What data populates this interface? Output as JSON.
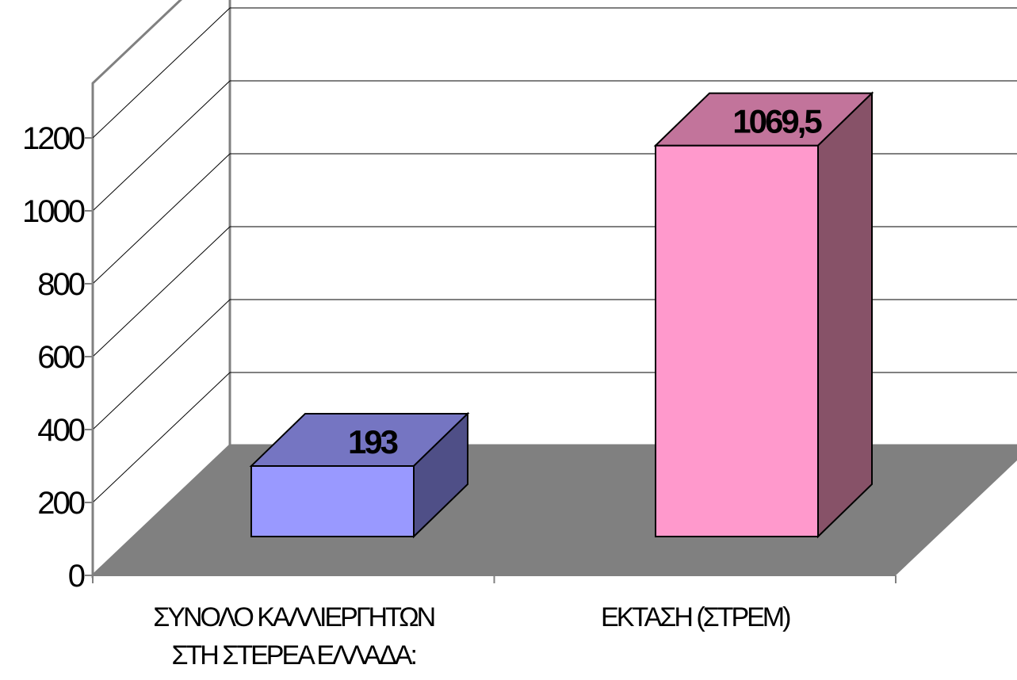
{
  "chart_data": {
    "type": "bar",
    "style": "3d-column",
    "categories": [
      "ΣΥΝΟΛΟ ΚΑΛΛΙΕΡΓΗΤΩΝ ΣΤΗ ΣΤΕΡΕΑ ΕΛΛΑΔΑ:",
      "ΕΚΤΑΣΗ (ΣΤΡΕΜ)"
    ],
    "category_lines": [
      [
        "ΣΥΝΟΛΟ ΚΑΛΛΙΕΡΓΗΤΩΝ",
        "ΣΤΗ ΣΤΕΡΕΑ ΕΛΛΑΔΑ:"
      ],
      [
        "ΕΚΤΑΣΗ (ΣΤΡΕΜ)"
      ]
    ],
    "values": [
      193,
      1069.5
    ],
    "data_labels": [
      "193",
      "1069,5"
    ],
    "yticks": [
      "0",
      "200",
      "400",
      "600",
      "800",
      "1000",
      "1200"
    ],
    "ylim": [
      0,
      1200
    ],
    "grid": true,
    "legend": "none",
    "colors": {
      "bars": [
        "#9999ff",
        "#ff99cc"
      ],
      "bar_tops": [
        "#7575c2",
        "#c2749b"
      ],
      "bar_sides": [
        "#4f4f87",
        "#875268"
      ],
      "floor": "#808080",
      "walls": "#ffffff",
      "axis": "#808080",
      "grid": "#000000"
    }
  }
}
